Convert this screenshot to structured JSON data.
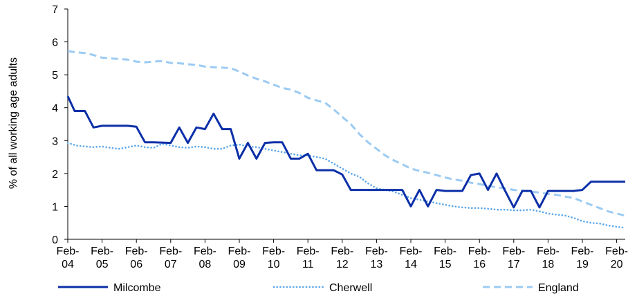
{
  "chart_data": {
    "type": "line",
    "ylabel": "% of all working age adults",
    "ylim": [
      0,
      7
    ],
    "yticks": [
      "0",
      "1",
      "2",
      "3",
      "4",
      "5",
      "6",
      "7"
    ],
    "xlim": [
      2004.0,
      2020.25
    ],
    "xticks": [
      {
        "x": 2004,
        "line1": "Feb-",
        "line2": "04"
      },
      {
        "x": 2005,
        "line1": "Feb-",
        "line2": "05"
      },
      {
        "x": 2006,
        "line1": "Feb-",
        "line2": "06"
      },
      {
        "x": 2007,
        "line1": "Feb-",
        "line2": "07"
      },
      {
        "x": 2008,
        "line1": "Feb-",
        "line2": "08"
      },
      {
        "x": 2009,
        "line1": "Feb-",
        "line2": "09"
      },
      {
        "x": 2010,
        "line1": "Feb-",
        "line2": "10"
      },
      {
        "x": 2011,
        "line1": "Feb-",
        "line2": "11"
      },
      {
        "x": 2012,
        "line1": "Feb-",
        "line2": "12"
      },
      {
        "x": 2013,
        "line1": "Feb-",
        "line2": "13"
      },
      {
        "x": 2014,
        "line1": "Feb-",
        "line2": "14"
      },
      {
        "x": 2015,
        "line1": "Feb-",
        "line2": "15"
      },
      {
        "x": 2016,
        "line1": "Feb-",
        "line2": "16"
      },
      {
        "x": 2017,
        "line1": "Feb-",
        "line2": "17"
      },
      {
        "x": 2018,
        "line1": "Feb-",
        "line2": "18"
      },
      {
        "x": 2019,
        "line1": "Feb-",
        "line2": "19"
      },
      {
        "x": 2020,
        "line1": "Feb-",
        "line2": "20"
      }
    ],
    "grid": false,
    "legend": "bottom",
    "series": [
      {
        "name": "Milcombe",
        "color": "#0b2fa8",
        "style": "solid",
        "points": [
          [
            2004.0,
            4.35
          ],
          [
            2004.2,
            3.9
          ],
          [
            2004.5,
            3.9
          ],
          [
            2004.75,
            3.4
          ],
          [
            2005.0,
            3.45
          ],
          [
            2005.5,
            3.45
          ],
          [
            2005.75,
            3.45
          ],
          [
            2006.0,
            3.42
          ],
          [
            2006.25,
            2.95
          ],
          [
            2006.5,
            2.95
          ],
          [
            2007.0,
            2.93
          ],
          [
            2007.25,
            3.4
          ],
          [
            2007.5,
            2.93
          ],
          [
            2007.75,
            3.4
          ],
          [
            2008.0,
            3.35
          ],
          [
            2008.25,
            3.82
          ],
          [
            2008.5,
            3.35
          ],
          [
            2008.75,
            3.35
          ],
          [
            2009.0,
            2.45
          ],
          [
            2009.25,
            2.93
          ],
          [
            2009.5,
            2.45
          ],
          [
            2009.75,
            2.93
          ],
          [
            2010.0,
            2.95
          ],
          [
            2010.25,
            2.95
          ],
          [
            2010.5,
            2.45
          ],
          [
            2010.75,
            2.45
          ],
          [
            2011.0,
            2.6
          ],
          [
            2011.25,
            2.1
          ],
          [
            2011.5,
            2.1
          ],
          [
            2011.75,
            2.1
          ],
          [
            2012.0,
            1.97
          ],
          [
            2012.25,
            1.5
          ],
          [
            2012.5,
            1.5
          ],
          [
            2012.75,
            1.5
          ],
          [
            2013.0,
            1.5
          ],
          [
            2013.25,
            1.5
          ],
          [
            2013.5,
            1.5
          ],
          [
            2013.75,
            1.5
          ],
          [
            2014.0,
            1.0
          ],
          [
            2014.25,
            1.5
          ],
          [
            2014.5,
            1.0
          ],
          [
            2014.75,
            1.5
          ],
          [
            2015.0,
            1.47
          ],
          [
            2015.25,
            1.47
          ],
          [
            2015.5,
            1.47
          ],
          [
            2015.75,
            1.95
          ],
          [
            2016.0,
            2.0
          ],
          [
            2016.25,
            1.5
          ],
          [
            2016.5,
            2.0
          ],
          [
            2016.75,
            1.47
          ],
          [
            2017.0,
            0.97
          ],
          [
            2017.25,
            1.47
          ],
          [
            2017.5,
            1.47
          ],
          [
            2017.75,
            0.97
          ],
          [
            2018.0,
            1.47
          ],
          [
            2018.25,
            1.47
          ],
          [
            2018.5,
            1.47
          ],
          [
            2018.75,
            1.47
          ],
          [
            2019.0,
            1.5
          ],
          [
            2019.25,
            1.75
          ],
          [
            2019.5,
            1.75
          ],
          [
            2019.75,
            1.75
          ],
          [
            2020.0,
            1.75
          ],
          [
            2020.25,
            1.75
          ]
        ]
      },
      {
        "name": "Cherwell",
        "color": "#5aa6ea",
        "style": "dotted",
        "points": [
          [
            2004.0,
            2.93
          ],
          [
            2004.25,
            2.85
          ],
          [
            2004.5,
            2.82
          ],
          [
            2004.75,
            2.8
          ],
          [
            2005.0,
            2.82
          ],
          [
            2005.25,
            2.78
          ],
          [
            2005.5,
            2.75
          ],
          [
            2005.75,
            2.8
          ],
          [
            2006.0,
            2.85
          ],
          [
            2006.25,
            2.8
          ],
          [
            2006.5,
            2.78
          ],
          [
            2006.75,
            2.9
          ],
          [
            2007.0,
            2.85
          ],
          [
            2007.25,
            2.8
          ],
          [
            2007.5,
            2.78
          ],
          [
            2007.75,
            2.82
          ],
          [
            2008.0,
            2.8
          ],
          [
            2008.25,
            2.75
          ],
          [
            2008.5,
            2.75
          ],
          [
            2008.75,
            2.85
          ],
          [
            2009.0,
            2.88
          ],
          [
            2009.25,
            2.82
          ],
          [
            2009.5,
            2.8
          ],
          [
            2009.75,
            2.75
          ],
          [
            2010.0,
            2.7
          ],
          [
            2010.25,
            2.65
          ],
          [
            2010.5,
            2.6
          ],
          [
            2010.75,
            2.55
          ],
          [
            2011.0,
            2.55
          ],
          [
            2011.25,
            2.5
          ],
          [
            2011.5,
            2.45
          ],
          [
            2011.75,
            2.3
          ],
          [
            2012.0,
            2.15
          ],
          [
            2012.25,
            2.0
          ],
          [
            2012.5,
            1.9
          ],
          [
            2012.75,
            1.7
          ],
          [
            2013.0,
            1.55
          ],
          [
            2013.25,
            1.5
          ],
          [
            2013.5,
            1.45
          ],
          [
            2013.75,
            1.35
          ],
          [
            2014.0,
            1.25
          ],
          [
            2014.25,
            1.2
          ],
          [
            2014.5,
            1.15
          ],
          [
            2014.75,
            1.1
          ],
          [
            2015.0,
            1.05
          ],
          [
            2015.25,
            1.0
          ],
          [
            2015.5,
            0.97
          ],
          [
            2015.75,
            0.95
          ],
          [
            2016.0,
            0.95
          ],
          [
            2016.25,
            0.93
          ],
          [
            2016.5,
            0.9
          ],
          [
            2016.75,
            0.9
          ],
          [
            2017.0,
            0.88
          ],
          [
            2017.25,
            0.88
          ],
          [
            2017.5,
            0.9
          ],
          [
            2017.75,
            0.85
          ],
          [
            2018.0,
            0.78
          ],
          [
            2018.25,
            0.75
          ],
          [
            2018.5,
            0.72
          ],
          [
            2018.75,
            0.65
          ],
          [
            2019.0,
            0.55
          ],
          [
            2019.25,
            0.5
          ],
          [
            2019.5,
            0.48
          ],
          [
            2019.75,
            0.42
          ],
          [
            2020.0,
            0.38
          ],
          [
            2020.25,
            0.35
          ]
        ]
      },
      {
        "name": "England",
        "color": "#9ccbf3",
        "style": "dashed",
        "points": [
          [
            2004.0,
            5.72
          ],
          [
            2004.25,
            5.68
          ],
          [
            2004.5,
            5.66
          ],
          [
            2004.75,
            5.6
          ],
          [
            2005.0,
            5.52
          ],
          [
            2005.25,
            5.5
          ],
          [
            2005.5,
            5.48
          ],
          [
            2005.75,
            5.46
          ],
          [
            2006.0,
            5.4
          ],
          [
            2006.25,
            5.38
          ],
          [
            2006.5,
            5.4
          ],
          [
            2006.75,
            5.42
          ],
          [
            2007.0,
            5.36
          ],
          [
            2007.25,
            5.35
          ],
          [
            2007.5,
            5.32
          ],
          [
            2007.75,
            5.3
          ],
          [
            2008.0,
            5.25
          ],
          [
            2008.25,
            5.23
          ],
          [
            2008.5,
            5.22
          ],
          [
            2008.75,
            5.2
          ],
          [
            2009.0,
            5.1
          ],
          [
            2009.25,
            4.98
          ],
          [
            2009.5,
            4.88
          ],
          [
            2009.75,
            4.8
          ],
          [
            2010.0,
            4.7
          ],
          [
            2010.25,
            4.6
          ],
          [
            2010.5,
            4.55
          ],
          [
            2010.75,
            4.45
          ],
          [
            2011.0,
            4.3
          ],
          [
            2011.25,
            4.22
          ],
          [
            2011.5,
            4.15
          ],
          [
            2011.75,
            3.95
          ],
          [
            2012.0,
            3.72
          ],
          [
            2012.25,
            3.5
          ],
          [
            2012.5,
            3.2
          ],
          [
            2012.75,
            2.95
          ],
          [
            2013.0,
            2.75
          ],
          [
            2013.25,
            2.55
          ],
          [
            2013.5,
            2.4
          ],
          [
            2013.75,
            2.28
          ],
          [
            2014.0,
            2.15
          ],
          [
            2014.25,
            2.08
          ],
          [
            2014.5,
            2.02
          ],
          [
            2014.75,
            1.95
          ],
          [
            2015.0,
            1.88
          ],
          [
            2015.25,
            1.82
          ],
          [
            2015.5,
            1.78
          ],
          [
            2015.75,
            1.72
          ],
          [
            2016.0,
            1.68
          ],
          [
            2016.25,
            1.62
          ],
          [
            2016.5,
            1.58
          ],
          [
            2016.75,
            1.55
          ],
          [
            2017.0,
            1.5
          ],
          [
            2017.25,
            1.48
          ],
          [
            2017.5,
            1.45
          ],
          [
            2017.75,
            1.42
          ],
          [
            2018.0,
            1.38
          ],
          [
            2018.25,
            1.35
          ],
          [
            2018.5,
            1.3
          ],
          [
            2018.75,
            1.25
          ],
          [
            2019.0,
            1.15
          ],
          [
            2019.25,
            1.05
          ],
          [
            2019.5,
            0.95
          ],
          [
            2019.75,
            0.85
          ],
          [
            2020.0,
            0.78
          ],
          [
            2020.25,
            0.72
          ]
        ]
      }
    ]
  }
}
